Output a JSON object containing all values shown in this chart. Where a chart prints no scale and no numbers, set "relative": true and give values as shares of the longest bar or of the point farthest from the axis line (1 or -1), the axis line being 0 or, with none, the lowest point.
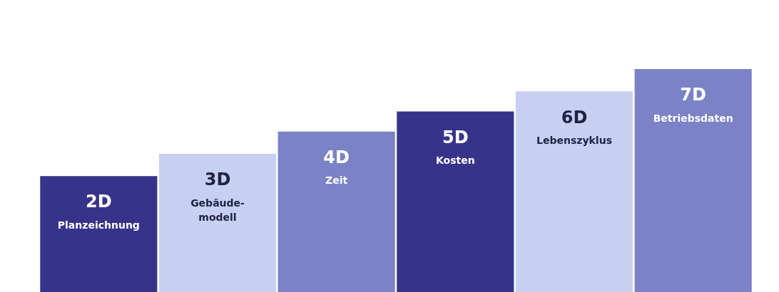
{
  "chart_data": {
    "type": "bar",
    "relative": true,
    "categories": [
      "2D\nPlanzeichnung",
      "3D\nGebäude-\nmodell",
      "4D\nZeit",
      "5D\nKosten",
      "6D\nLebenszyklus",
      "7D\nBetriebsdaten"
    ],
    "values": [
      0.52,
      0.62,
      0.72,
      0.81,
      0.9,
      1
    ],
    "colors": [
      "#38338a",
      "#c7d0f0",
      "#7c82c6",
      "#38338a",
      "#c7d0f0",
      "#7c82c6"
    ],
    "grid": false,
    "legend": false,
    "tick_labels": false
  }
}
